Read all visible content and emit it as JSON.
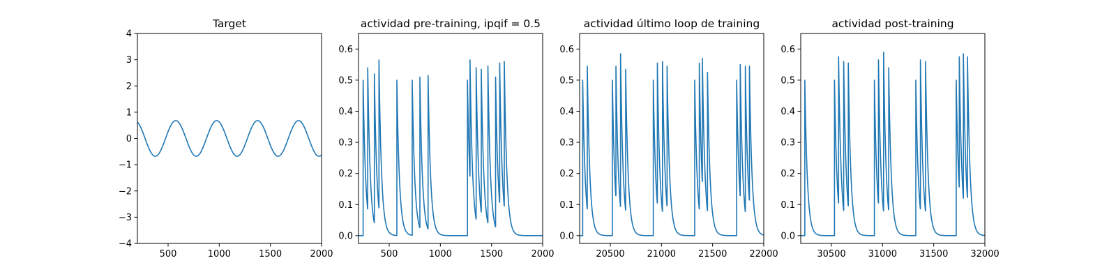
{
  "chart_data": [
    {
      "type": "line",
      "title": "Target",
      "xlabel": "",
      "ylabel": "",
      "xlim": [
        200,
        2000
      ],
      "ylim": [
        -4,
        4
      ],
      "xticks": [
        500,
        1000,
        1500,
        2000
      ],
      "yticks": [
        -4,
        -3,
        -2,
        -1,
        0,
        1,
        2,
        3,
        4
      ],
      "grid": false,
      "series_color": "#1f77b4",
      "signal": {
        "kind": "sine",
        "amplitude": 0.68,
        "period": 400,
        "peak_x": 575,
        "x_range": [
          200,
          2000
        ]
      }
    },
    {
      "type": "line",
      "title": "actividad pre-training, ipqif = 0.5",
      "xlabel": "",
      "ylabel": "",
      "xlim": [
        200,
        2000
      ],
      "ylim": [
        -0.025,
        0.65
      ],
      "xticks": [
        500,
        1000,
        1500,
        2000
      ],
      "yticks": [
        0.0,
        0.1,
        0.2,
        0.3,
        0.4,
        0.5,
        0.6
      ],
      "grid": false,
      "series_color": "#1f77b4",
      "signal": {
        "kind": "spikes",
        "onset_x": 245,
        "decay_tau": 25,
        "x_range": [
          200,
          2000
        ]
      },
      "spikes": [
        {
          "x": 245,
          "peak": 0.5
        },
        {
          "x": 290,
          "peak": 0.54
        },
        {
          "x": 355,
          "peak": 0.52
        },
        {
          "x": 400,
          "peak": 0.565
        },
        {
          "x": 575,
          "peak": 0.5
        },
        {
          "x": 725,
          "peak": 0.5
        },
        {
          "x": 800,
          "peak": 0.51
        },
        {
          "x": 880,
          "peak": 0.515
        },
        {
          "x": 1265,
          "peak": 0.5
        },
        {
          "x": 1290,
          "peak": 0.565
        },
        {
          "x": 1350,
          "peak": 0.54
        },
        {
          "x": 1400,
          "peak": 0.535
        },
        {
          "x": 1465,
          "peak": 0.545
        },
        {
          "x": 1540,
          "peak": 0.51
        },
        {
          "x": 1580,
          "peak": 0.555
        },
        {
          "x": 1625,
          "peak": 0.56
        }
      ]
    },
    {
      "type": "line",
      "title": "actividad último loop de training",
      "xlabel": "",
      "ylabel": "",
      "xlim": [
        20200,
        22000
      ],
      "ylim": [
        -0.025,
        0.65
      ],
      "xticks": [
        20500,
        21000,
        21500,
        22000
      ],
      "yticks": [
        0.0,
        0.1,
        0.2,
        0.3,
        0.4,
        0.5,
        0.6
      ],
      "grid": false,
      "series_color": "#1f77b4",
      "signal": {
        "kind": "spikes",
        "onset_x": 20200,
        "decay_tau": 25,
        "x_range": [
          20200,
          22000
        ]
      },
      "spikes": [
        {
          "x": 20230,
          "peak": 0.5
        },
        {
          "x": 20275,
          "peak": 0.545
        },
        {
          "x": 20520,
          "peak": 0.5
        },
        {
          "x": 20555,
          "peak": 0.545
        },
        {
          "x": 20600,
          "peak": 0.585
        },
        {
          "x": 20650,
          "peak": 0.535
        },
        {
          "x": 20920,
          "peak": 0.5
        },
        {
          "x": 20960,
          "peak": 0.555
        },
        {
          "x": 21010,
          "peak": 0.56
        },
        {
          "x": 21055,
          "peak": 0.545
        },
        {
          "x": 21325,
          "peak": 0.5
        },
        {
          "x": 21370,
          "peak": 0.555
        },
        {
          "x": 21400,
          "peak": 0.57
        },
        {
          "x": 21450,
          "peak": 0.525
        },
        {
          "x": 21735,
          "peak": 0.5
        },
        {
          "x": 21770,
          "peak": 0.55
        },
        {
          "x": 21820,
          "peak": 0.545
        },
        {
          "x": 21860,
          "peak": 0.545
        }
      ]
    },
    {
      "type": "line",
      "title": "actividad post-training",
      "xlabel": "",
      "ylabel": "",
      "xlim": [
        30200,
        32000
      ],
      "ylim": [
        -0.025,
        0.65
      ],
      "xticks": [
        30500,
        31000,
        31500,
        32000
      ],
      "yticks": [
        0.0,
        0.1,
        0.2,
        0.3,
        0.4,
        0.5,
        0.6
      ],
      "grid": false,
      "series_color": "#1f77b4",
      "signal": {
        "kind": "spikes",
        "onset_x": 30200,
        "decay_tau": 25,
        "x_range": [
          30200,
          32000
        ]
      },
      "spikes": [
        {
          "x": 30240,
          "peak": 0.5
        },
        {
          "x": 30530,
          "peak": 0.5
        },
        {
          "x": 30570,
          "peak": 0.575
        },
        {
          "x": 30620,
          "peak": 0.56
        },
        {
          "x": 30665,
          "peak": 0.555
        },
        {
          "x": 30920,
          "peak": 0.5
        },
        {
          "x": 30960,
          "peak": 0.565
        },
        {
          "x": 31010,
          "peak": 0.59
        },
        {
          "x": 31060,
          "peak": 0.54
        },
        {
          "x": 31325,
          "peak": 0.5
        },
        {
          "x": 31370,
          "peak": 0.565
        },
        {
          "x": 31420,
          "peak": 0.56
        },
        {
          "x": 31720,
          "peak": 0.5
        },
        {
          "x": 31750,
          "peak": 0.575
        },
        {
          "x": 31790,
          "peak": 0.585
        },
        {
          "x": 31830,
          "peak": 0.575
        }
      ]
    }
  ]
}
